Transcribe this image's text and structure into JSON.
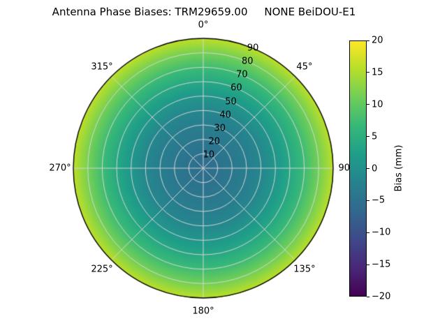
{
  "title": "Antenna Phase Biases: TRM29659.00     NONE BeiDOU-E1",
  "chart_data": {
    "type": "heatmap",
    "projection": "polar",
    "title": "Antenna Phase Biases: TRM29659.00     NONE BeiDOU-E1",
    "grid": true,
    "angular_ticks": [
      {
        "label": "0°",
        "angle_deg": 0
      },
      {
        "label": "45°",
        "angle_deg": 45
      },
      {
        "label": "90°",
        "angle_deg": 90
      },
      {
        "label": "135°",
        "angle_deg": 135
      },
      {
        "label": "180°",
        "angle_deg": 180
      },
      {
        "label": "225°",
        "angle_deg": 225
      },
      {
        "label": "270°",
        "angle_deg": 270
      },
      {
        "label": "315°",
        "angle_deg": 315
      }
    ],
    "radial_ticks": [
      "10",
      "20",
      "30",
      "40",
      "50",
      "60",
      "70",
      "80",
      "90"
    ],
    "radial_tick_values": [
      10,
      20,
      30,
      40,
      50,
      60,
      70,
      80,
      90
    ],
    "radial_label_azimuth_deg": 22.5,
    "radial_max": 90,
    "radial_profile": {
      "zenith_deg": [
        0,
        10,
        20,
        30,
        40,
        50,
        60,
        70,
        80,
        90
      ],
      "bias_mm": [
        -6,
        -5,
        -4,
        -3,
        -1.5,
        1,
        4,
        7.5,
        11.5,
        16
      ]
    },
    "colorbar": {
      "label": "Bias (mm)",
      "min": -20,
      "max": 20,
      "tick_values": [
        20,
        15,
        10,
        5,
        0,
        -5,
        -10,
        -15,
        -20
      ],
      "tick_labels": [
        "20",
        "15",
        "10",
        "5",
        "0",
        "−5",
        "−10",
        "−15",
        "−20"
      ],
      "colormap": "viridis",
      "colors": [
        "#440154",
        "#482878",
        "#3e4989",
        "#31688e",
        "#26828e",
        "#1f9e89",
        "#35b779",
        "#6ece58",
        "#b5de2b",
        "#fde725"
      ]
    },
    "grid_color": "#d8d8d8",
    "outline_color": "#000000"
  }
}
